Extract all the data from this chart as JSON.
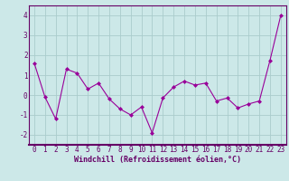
{
  "x": [
    0,
    1,
    2,
    3,
    4,
    5,
    6,
    7,
    8,
    9,
    10,
    11,
    12,
    13,
    14,
    15,
    16,
    17,
    18,
    19,
    20,
    21,
    22,
    23
  ],
  "y": [
    1.6,
    -0.1,
    -1.2,
    1.3,
    1.1,
    0.3,
    0.6,
    -0.2,
    -0.7,
    -1.0,
    -0.6,
    -1.9,
    -0.15,
    0.4,
    0.7,
    0.5,
    0.6,
    -0.3,
    -0.15,
    -0.65,
    -0.45,
    -0.3,
    1.75,
    4.0
  ],
  "line_color": "#990099",
  "marker": "D",
  "marker_size": 2.0,
  "bg_color": "#cce8e8",
  "grid_color": "#aacccc",
  "xlabel": "Windchill (Refroidissement éolien,°C)",
  "xlabel_fontsize": 6.0,
  "tick_fontsize": 5.5,
  "ylim": [
    -2.5,
    4.5
  ],
  "xlim": [
    -0.5,
    23.5
  ],
  "yticks": [
    -2,
    -1,
    0,
    1,
    2,
    3,
    4
  ],
  "xticks": [
    0,
    1,
    2,
    3,
    4,
    5,
    6,
    7,
    8,
    9,
    10,
    11,
    12,
    13,
    14,
    15,
    16,
    17,
    18,
    19,
    20,
    21,
    22,
    23
  ],
  "spine_color": "#660066",
  "label_color": "#660066"
}
